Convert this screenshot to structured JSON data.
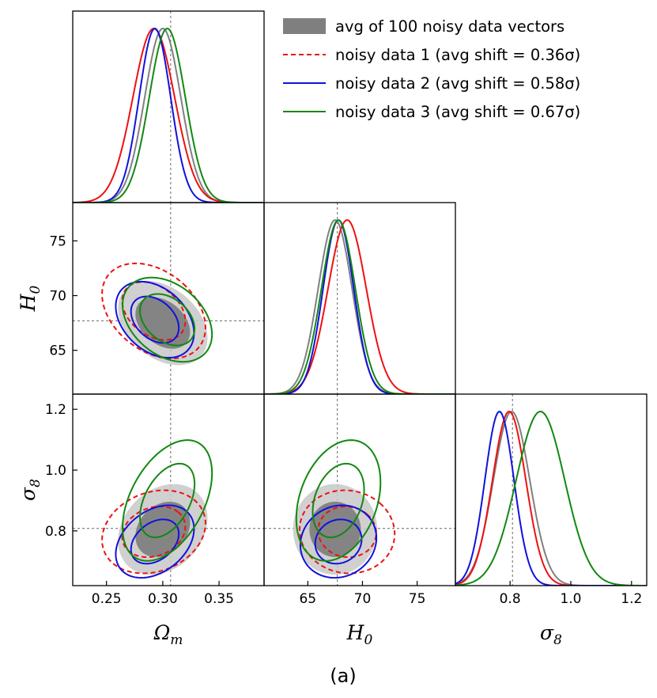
{
  "chart_data": {
    "type": "triangle-corner-plot",
    "caption": "(a)",
    "parameters": [
      "Omega_m",
      "H0",
      "sigma8"
    ],
    "axis_labels": {
      "Omega_m": {
        "base": "Ω",
        "sub": "m"
      },
      "H0": {
        "base": "H",
        "sub": "0"
      },
      "sigma8": {
        "base": "σ",
        "sub": "8"
      }
    },
    "ranges": {
      "Omega_m": [
        0.22,
        0.39
      ],
      "H0": [
        61.0,
        78.5
      ],
      "sigma8": [
        0.62,
        1.25
      ]
    },
    "ticks": {
      "Omega_m": [
        {
          "v": 0.25,
          "label": "0.25"
        },
        {
          "v": 0.3,
          "label": "0.30"
        },
        {
          "v": 0.35,
          "label": "0.35"
        }
      ],
      "H0": [
        {
          "v": 65,
          "label": "65"
        },
        {
          "v": 70,
          "label": "70"
        },
        {
          "v": 75,
          "label": "75"
        }
      ],
      "sigma8": [
        {
          "v": 0.8,
          "label": "0.8"
        },
        {
          "v": 1.0,
          "label": "1.0"
        },
        {
          "v": 1.2,
          "label": "1.2"
        }
      ]
    },
    "truth": {
      "Omega_m": 0.307,
      "H0": 67.7,
      "sigma8": 0.808
    },
    "series": [
      {
        "name": "avg of 100 noisy data vectors",
        "style": "filled",
        "color": "#808080",
        "fill_outer": "#c8c8c8",
        "fill_inner": "#7f7f7f",
        "mean": {
          "Omega_m": 0.3,
          "H0": 67.5,
          "sigma8": 0.805
        },
        "sd": {
          "Omega_m": 0.016,
          "H0": 1.55,
          "sigma8": 0.06
        },
        "rho": {
          "Omega_m-H0": -0.35,
          "Omega_m-sigma8": 0.25,
          "H0-sigma8": 0.0
        }
      },
      {
        "name": "noisy data 1 (avg shift = 0.36σ)",
        "style": "dashed",
        "color": "#ee1111",
        "mean": {
          "Omega_m": 0.292,
          "H0": 68.6,
          "sigma8": 0.797
        },
        "sd": {
          "Omega_m": 0.0185,
          "H0": 1.75,
          "sigma8": 0.055
        },
        "rho": {
          "Omega_m-H0": -0.35,
          "Omega_m-sigma8": 0.2,
          "H0-sigma8": -0.05
        }
      },
      {
        "name": "noisy data 2 (avg shift = 0.58σ)",
        "style": "solid",
        "color": "#1111dd",
        "mean": {
          "Omega_m": 0.293,
          "H0": 67.8,
          "sigma8": 0.765
        },
        "sd": {
          "Omega_m": 0.014,
          "H0": 1.4,
          "sigma8": 0.048
        },
        "rho": {
          "Omega_m-H0": -0.35,
          "Omega_m-sigma8": 0.35,
          "H0-sigma8": 0.1
        }
      },
      {
        "name": "noisy data 3 (avg shift = 0.67σ)",
        "style": "solid",
        "color": "#118811",
        "mean": {
          "Omega_m": 0.304,
          "H0": 67.8,
          "sigma8": 0.9
        },
        "sd": {
          "Omega_m": 0.016,
          "H0": 1.55,
          "sigma8": 0.08
        },
        "rho": {
          "Omega_m-H0": -0.35,
          "Omega_m-sigma8": 0.45,
          "H0-sigma8": 0.3
        }
      }
    ],
    "legend_position": "top-right"
  }
}
